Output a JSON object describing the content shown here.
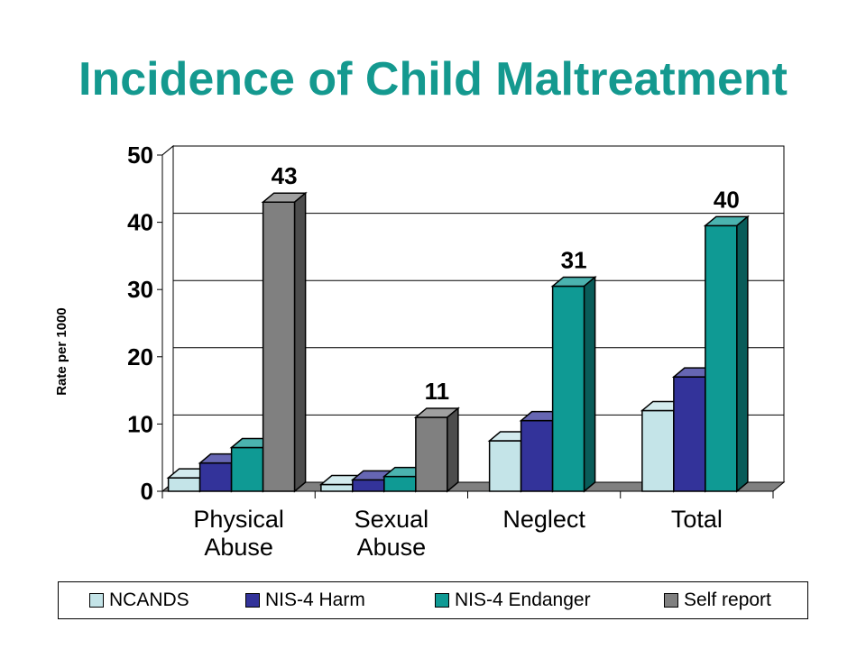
{
  "title": "Incidence of Child Maltreatment",
  "chart_data": {
    "type": "bar",
    "title": "Incidence of Child Maltreatment",
    "xlabel": "",
    "ylabel": "Rate per 1000",
    "ylim": [
      0,
      50
    ],
    "yticks": [
      "0",
      "10",
      "20",
      "30",
      "40",
      "50"
    ],
    "grid": true,
    "legend_position": "bottom",
    "categories": [
      [
        "Physical",
        "Abuse"
      ],
      [
        "Sexual",
        "Abuse"
      ],
      [
        "Neglect"
      ],
      [
        "Total"
      ]
    ],
    "series": [
      {
        "name": "NCANDS",
        "color": "#c4e4e8",
        "values": [
          2,
          1,
          7.5,
          12
        ]
      },
      {
        "name": "NIS-4 Harm",
        "color": "#33339a",
        "values": [
          4.2,
          1.7,
          10.5,
          17
        ]
      },
      {
        "name": "NIS-4 Endanger",
        "color": "#0f9a94",
        "values": [
          6.5,
          2.2,
          30.5,
          39.5
        ]
      },
      {
        "name": "Self report",
        "color": "#808080",
        "values": [
          43,
          11,
          null,
          null
        ]
      }
    ],
    "data_labels": [
      {
        "category_index": 0,
        "series_index": 3,
        "text": "43"
      },
      {
        "category_index": 1,
        "series_index": 3,
        "text": "11"
      },
      {
        "category_index": 2,
        "series_index": 2,
        "text": "31"
      },
      {
        "category_index": 3,
        "series_index": 2,
        "text": "40"
      }
    ]
  }
}
